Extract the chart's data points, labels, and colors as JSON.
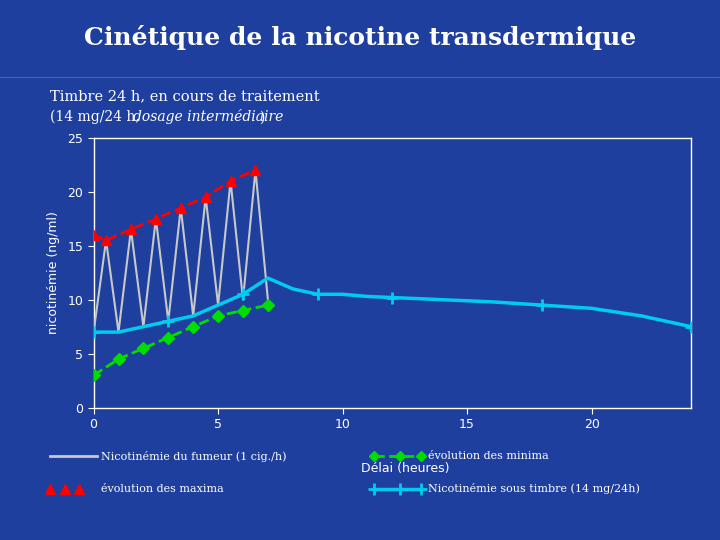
{
  "title": "Cinétique de la nicotine transdermique",
  "subtitle1": "Timbre 24 h, en cours de traitement",
  "subtitle2": "(14 mg/24 h, dosage intermédiaire)",
  "bg_color": "#1e3f9e",
  "title_bg_color": "#1a3580",
  "title_color": "white",
  "text_color": "white",
  "ylabel": "nicotinémie (ng/ml)",
  "xlabel": "Délai (heures)",
  "xlim": [
    0,
    24
  ],
  "ylim": [
    0,
    25
  ],
  "xticks": [
    0,
    5,
    10,
    15,
    20
  ],
  "yticks": [
    0,
    5,
    10,
    15,
    20,
    25
  ],
  "smoker_x": [
    0,
    0.5,
    1,
    1.5,
    2,
    2.5,
    3,
    3.5,
    4,
    4.5,
    5,
    5.5,
    6,
    6.5,
    7
  ],
  "smoker_y": [
    7,
    15.5,
    7,
    16.5,
    7.5,
    17.5,
    8,
    18.5,
    8.5,
    19.5,
    9.5,
    21,
    10,
    22,
    10
  ],
  "maxima_x": [
    0,
    0.5,
    1.5,
    2.5,
    3.5,
    4.5,
    5.5,
    6.5
  ],
  "maxima_y": [
    16,
    15.5,
    16.5,
    17.5,
    18.5,
    19.5,
    21,
    22
  ],
  "minima_x": [
    0,
    1,
    2,
    3,
    4,
    5,
    6,
    7
  ],
  "minima_y": [
    3,
    4.5,
    5.5,
    6.5,
    7.5,
    8.5,
    9,
    9.5
  ],
  "patch_x": [
    0,
    1,
    2,
    3,
    4,
    5,
    6,
    7,
    8,
    9,
    10,
    11,
    12,
    14,
    16,
    18,
    20,
    22,
    24
  ],
  "patch_y": [
    7,
    7,
    7.5,
    8,
    8.5,
    9.5,
    10.5,
    12,
    11,
    10.5,
    10.5,
    10.3,
    10.2,
    10.0,
    9.8,
    9.5,
    9.2,
    8.5,
    7.5
  ],
  "legend_labels": [
    "Nicotinémie du fumeur (1 cig./h)",
    "évolution des maxima",
    "évolution des minima",
    "Nicotinémie sous timbre (14 mg/24h)"
  ],
  "smoker_color": "#c8c8c8",
  "maxima_color": "#ff0000",
  "minima_color": "#00dd00",
  "patch_color": "#00ccee"
}
